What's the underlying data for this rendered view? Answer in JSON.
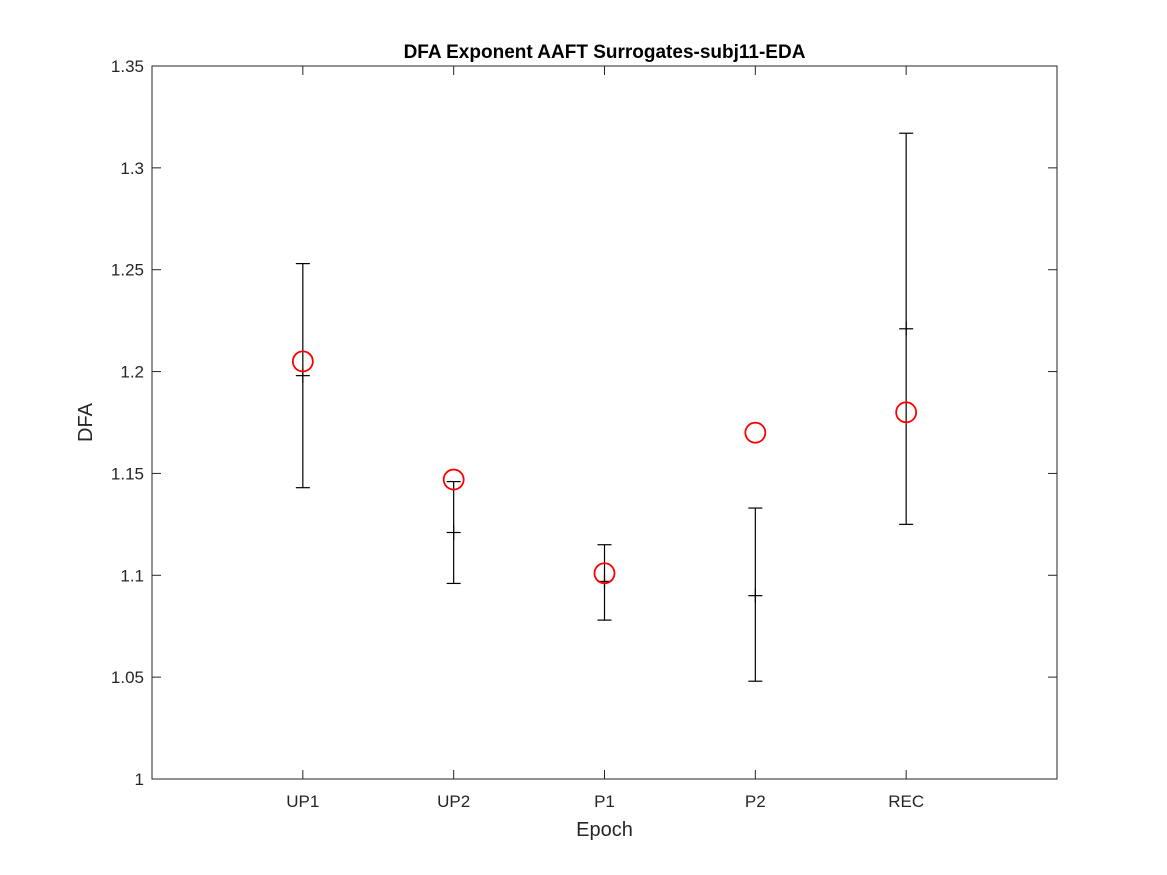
{
  "chart_data": {
    "type": "errorbar",
    "title": "DFA Exponent AAFT Surrogates-subj11-EDA",
    "xlabel": "Epoch",
    "ylabel": "DFA",
    "categories": [
      "UP1",
      "UP2",
      "P1",
      "P2",
      "REC"
    ],
    "xlim": [
      0,
      6
    ],
    "ylim": [
      1,
      1.35
    ],
    "yticks": [
      "1",
      "1.05",
      "1.1",
      "1.15",
      "1.2",
      "1.25",
      "1.3",
      "1.35"
    ],
    "grid": false,
    "series": [
      {
        "kind": "surrogate-mean-with-error",
        "color": "#000000",
        "marker": "+",
        "values": [
          1.198,
          1.121,
          1.097,
          1.09,
          1.221
        ],
        "lower": [
          1.143,
          1.096,
          1.078,
          1.048,
          1.125
        ],
        "upper": [
          1.253,
          1.146,
          1.115,
          1.133,
          1.317
        ]
      },
      {
        "kind": "original",
        "color": "#ff0000",
        "marker": "o",
        "values": [
          1.205,
          1.147,
          1.101,
          1.17,
          1.18
        ]
      }
    ]
  }
}
